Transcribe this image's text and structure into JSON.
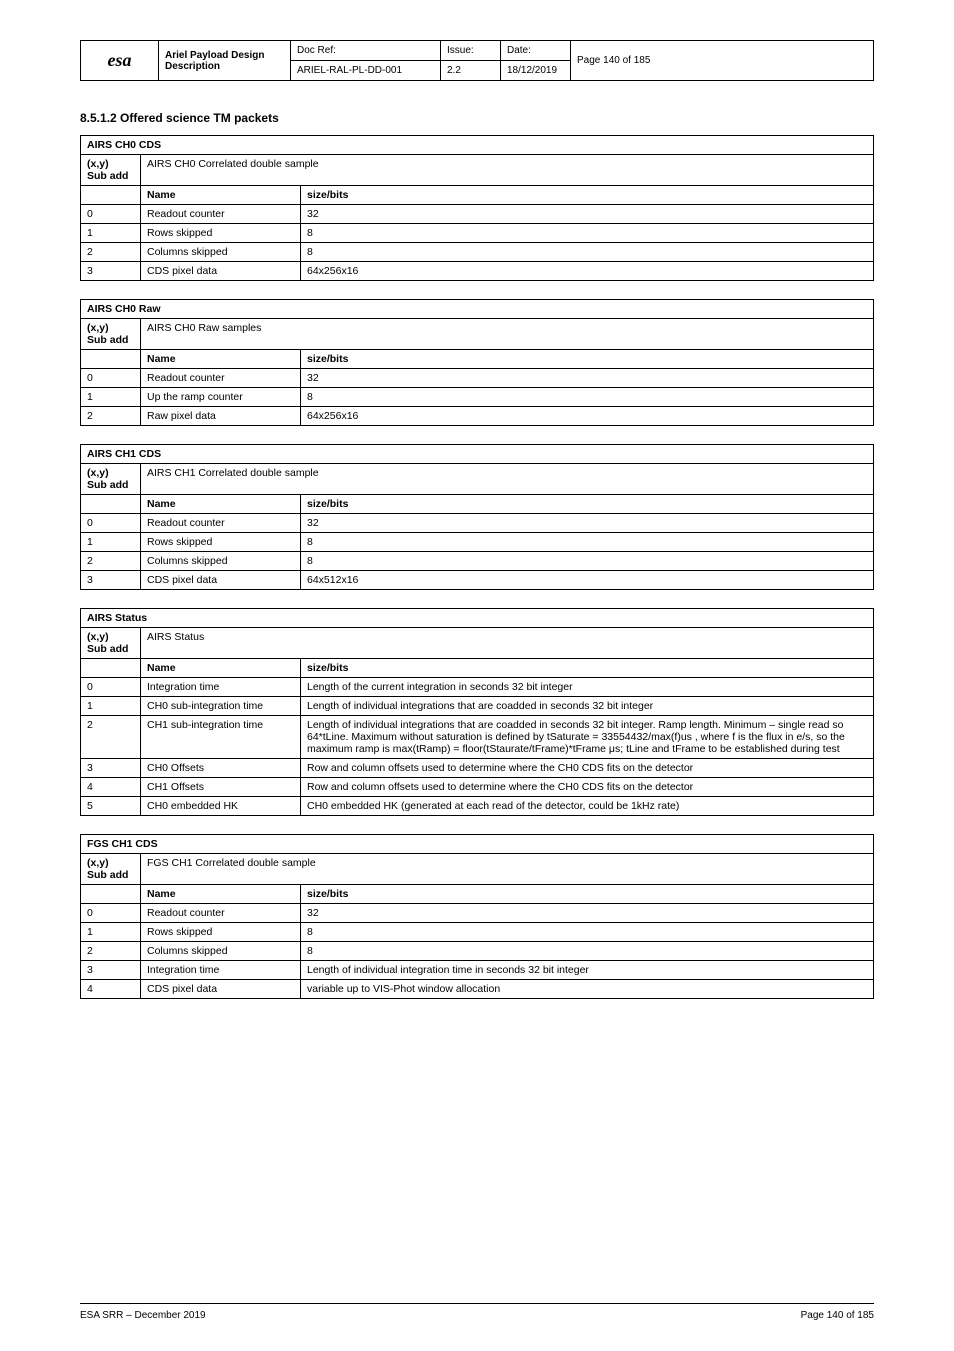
{
  "header": {
    "logo": "esa",
    "title": "Ariel Payload Design Description",
    "ref_label": "Doc Ref:",
    "ref": "ARIEL-RAL-PL-DD-001",
    "rev_label": "Issue:",
    "rev": "2.2",
    "date_label": "Date:",
    "date": "18/12/2019",
    "page_label": "Page",
    "page": "140 of 185"
  },
  "section_title": "8.5.1.2 Offered science TM packets",
  "tables": [
    {
      "title": "AIRS CH0 CDS",
      "id": "(x,y)",
      "subtitle_label": "Sub add",
      "subtitle": "AIRS CH0 Correlated double sample",
      "cols": [
        "Name",
        "size/bits"
      ],
      "rows": [
        [
          "0",
          "Readout counter",
          "32"
        ],
        [
          "1",
          "Rows skipped",
          "8"
        ],
        [
          "2",
          "Columns skipped",
          "8"
        ],
        [
          "3",
          "CDS pixel data",
          "64x256x16"
        ]
      ]
    },
    {
      "title": "AIRS CH0 Raw",
      "id": "(x,y)",
      "subtitle_label": "Sub add",
      "subtitle": "AIRS CH0 Raw samples",
      "cols": [
        "Name",
        "size/bits"
      ],
      "rows": [
        [
          "0",
          "Readout counter",
          "32"
        ],
        [
          "1",
          "Up the ramp counter",
          "8"
        ],
        [
          "2",
          "Raw pixel data",
          "64x256x16"
        ]
      ]
    },
    {
      "title": "AIRS CH1 CDS",
      "id": "(x,y)",
      "subtitle_label": "Sub add",
      "subtitle": "AIRS CH1 Correlated double sample",
      "cols": [
        "Name",
        "size/bits"
      ],
      "rows": [
        [
          "0",
          "Readout counter",
          "32"
        ],
        [
          "1",
          "Rows skipped",
          "8"
        ],
        [
          "2",
          "Columns skipped",
          "8"
        ],
        [
          "3",
          "CDS pixel data",
          "64x512x16"
        ]
      ]
    },
    {
      "title": "AIRS Status",
      "id": "(x,y)",
      "subtitle_label": "Sub add",
      "subtitle": "AIRS Status",
      "cols": [
        "Name",
        "size/bits"
      ],
      "rows": [
        [
          "0",
          "Integration time",
          "Length of the current integration in seconds 32 bit integer"
        ],
        [
          "1",
          "CH0 sub-integration time",
          "Length of individual integrations that are coadded in seconds 32 bit integer"
        ],
        [
          "2",
          "CH1 sub-integration time",
          "Length of individual integrations that are coadded in seconds 32 bit integer. Ramp length. Minimum – single read so 64*tLine. Maximum without saturation is defined by tSaturate = 33554432/max(f)us , where f is the flux in e/s, so the maximum ramp is max(tRamp) = floor(tStaurate/tFrame)*tFrame μs; tLine and tFrame to be established during test"
        ],
        [
          "3",
          "CH0 Offsets",
          "Row and column offsets used to determine where the CH0 CDS fits on the detector"
        ],
        [
          "4",
          "CH1 Offsets",
          "Row and column offsets used to determine where the CH0 CDS fits on the detector"
        ],
        [
          "5",
          "CH0 embedded HK",
          "CH0 embedded HK (generated at each read of the detector, could be 1kHz rate)"
        ]
      ]
    },
    {
      "title": "FGS CH1 CDS",
      "id": "(x,y)",
      "subtitle_label": "Sub add",
      "subtitle": "FGS CH1 Correlated double sample",
      "cols": [
        "Name",
        "size/bits"
      ],
      "rows": [
        [
          "0",
          "Readout counter",
          "32"
        ],
        [
          "1",
          "Rows skipped",
          "8"
        ],
        [
          "2",
          "Columns skipped",
          "8"
        ],
        [
          "3",
          "Integration time",
          "Length of individual integration time in seconds 32 bit integer"
        ],
        [
          "4",
          "CDS pixel data",
          "variable up to VIS-Phot window allocation"
        ]
      ]
    }
  ],
  "footer": {
    "left": "ESA SRR – December 2019",
    "right": "Page 140 of 185"
  }
}
